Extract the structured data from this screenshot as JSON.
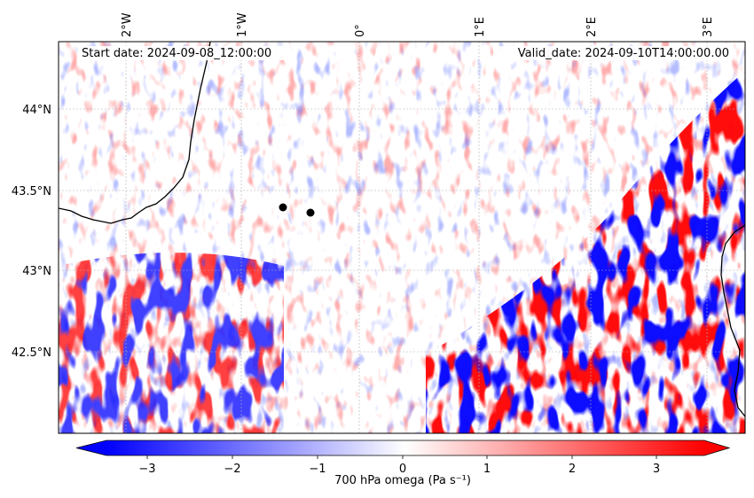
{
  "map": {
    "start_date": "Start date: 2024-09-08_12:00:00",
    "valid_date": "Valid_date: 2024-09-10T14:00:00.00",
    "lon_labels": [
      "2°W",
      "1°W",
      "0°",
      "1°E",
      "2°E",
      "3°E"
    ],
    "lat_labels": [
      "44°N",
      "43.5°N",
      "43°N",
      "42.5°N"
    ],
    "markers": [
      {
        "lon": -0.62,
        "lat": 43.39
      },
      {
        "lon": -0.39,
        "lat": 43.36
      }
    ],
    "colors": {
      "negative": "#0000ff",
      "zero": "#ffffff",
      "positive": "#ff0000",
      "coastline": "#000000",
      "gridline": "#b0b0b0"
    }
  },
  "colorbar": {
    "label": "700 hPa omega (Pa s⁻¹)",
    "ticks": [
      "−3",
      "−2",
      "−1",
      "0",
      "1",
      "2",
      "3"
    ],
    "range": [
      -3.5,
      3.5
    ],
    "extend": "both"
  }
}
